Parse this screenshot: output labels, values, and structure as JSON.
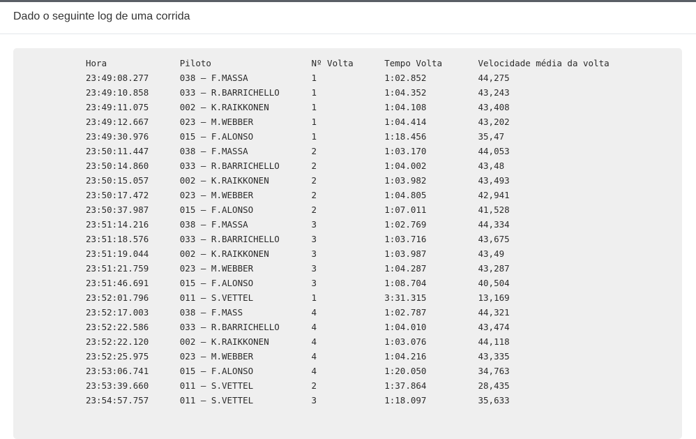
{
  "header": {
    "title": "Dado o seguinte log de uma corrida"
  },
  "log": {
    "columns": [
      "Hora",
      "Piloto",
      "Nº Volta",
      "Tempo Volta",
      "Velocidade média da volta"
    ],
    "rows": [
      [
        "23:49:08.277",
        "038 – F.MASSA",
        "1",
        "1:02.852",
        "44,275"
      ],
      [
        "23:49:10.858",
        "033 – R.BARRICHELLO",
        "1",
        "1:04.352",
        "43,243"
      ],
      [
        "23:49:11.075",
        "002 – K.RAIKKONEN",
        "1",
        "1:04.108",
        "43,408"
      ],
      [
        "23:49:12.667",
        "023 – M.WEBBER",
        "1",
        "1:04.414",
        "43,202"
      ],
      [
        "23:49:30.976",
        "015 – F.ALONSO",
        "1",
        "1:18.456",
        "35,47"
      ],
      [
        "23:50:11.447",
        "038 – F.MASSA",
        "2",
        "1:03.170",
        "44,053"
      ],
      [
        "23:50:14.860",
        "033 – R.BARRICHELLO",
        "2",
        "1:04.002",
        "43,48"
      ],
      [
        "23:50:15.057",
        "002 – K.RAIKKONEN",
        "2",
        "1:03.982",
        "43,493"
      ],
      [
        "23:50:17.472",
        "023 – M.WEBBER",
        "2",
        "1:04.805",
        "42,941"
      ],
      [
        "23:50:37.987",
        "015 – F.ALONSO",
        "2",
        "1:07.011",
        "41,528"
      ],
      [
        "23:51:14.216",
        "038 – F.MASSA",
        "3",
        "1:02.769",
        "44,334"
      ],
      [
        "23:51:18.576",
        "033 – R.BARRICHELLO",
        "3",
        "1:03.716",
        "43,675"
      ],
      [
        "23:51:19.044",
        "002 – K.RAIKKONEN",
        "3",
        "1:03.987",
        "43,49"
      ],
      [
        "23:51:21.759",
        "023 – M.WEBBER",
        "3",
        "1:04.287",
        "43,287"
      ],
      [
        "23:51:46.691",
        "015 – F.ALONSO",
        "3",
        "1:08.704",
        "40,504"
      ],
      [
        "23:52:01.796",
        "011 – S.VETTEL",
        "1",
        "3:31.315",
        "13,169"
      ],
      [
        "23:52:17.003",
        "038 – F.MASS",
        "4",
        "1:02.787",
        "44,321"
      ],
      [
        "23:52:22.586",
        "033 – R.BARRICHELLO",
        "4",
        "1:04.010",
        "43,474"
      ],
      [
        "23:52:22.120",
        "002 – K.RAIKKONEN",
        "4",
        "1:03.076",
        "44,118"
      ],
      [
        "23:52:25.975",
        "023 – M.WEBBER",
        "4",
        "1:04.216",
        "43,335"
      ],
      [
        "23:53:06.741",
        "015 – F.ALONSO",
        "4",
        "1:20.050",
        "34,763"
      ],
      [
        "23:53:39.660",
        "011 – S.VETTEL",
        "2",
        "1:37.864",
        "28,435"
      ],
      [
        "23:54:57.757",
        "011 – S.VETTEL",
        "3",
        "1:18.097",
        "35,633"
      ]
    ]
  }
}
